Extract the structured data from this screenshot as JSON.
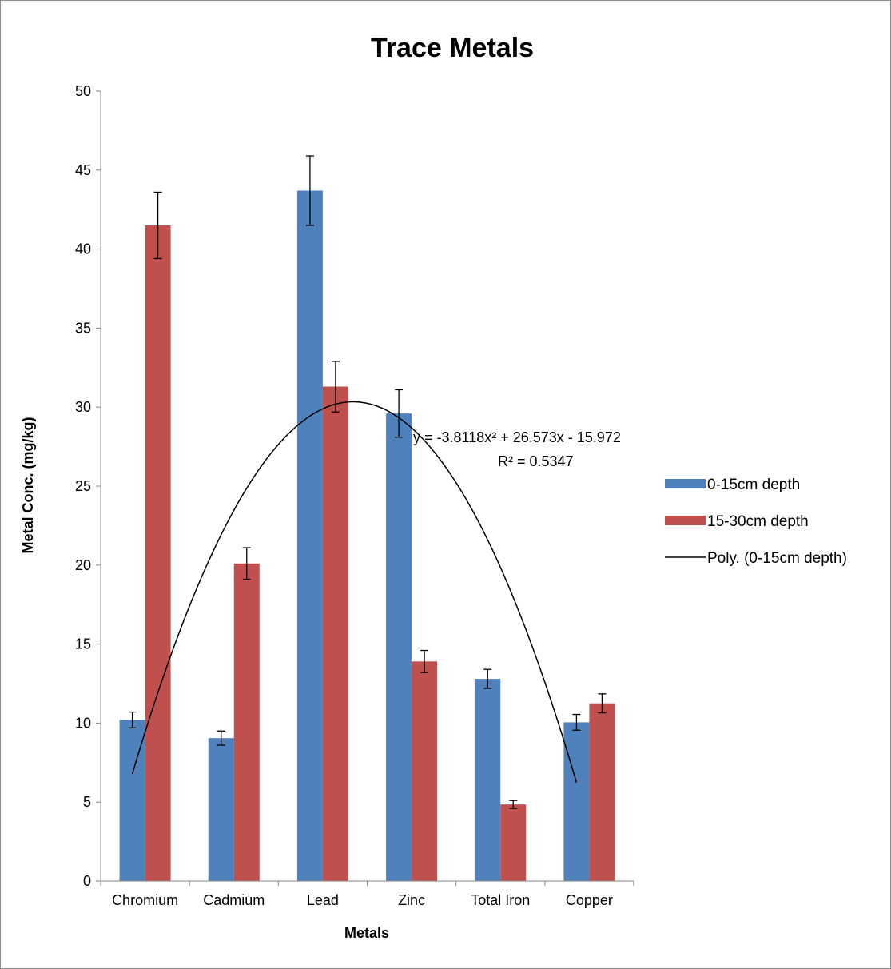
{
  "chart_data": {
    "type": "bar",
    "title": "Trace Metals",
    "xlabel": "Metals",
    "ylabel": "Metal Conc. (mg/kg)",
    "ylim": [
      0,
      50
    ],
    "yticks": [
      0,
      5,
      10,
      15,
      20,
      25,
      30,
      35,
      40,
      45,
      50
    ],
    "categories": [
      "Chromium",
      "Cadmium",
      "Lead",
      "Zinc",
      "Total Iron",
      "Copper"
    ],
    "series": [
      {
        "name": "0-15cm depth",
        "color": "#4f81bd",
        "values": [
          10.2,
          9.05,
          43.7,
          29.6,
          12.8,
          10.05
        ],
        "errors": [
          0.5,
          0.45,
          2.2,
          1.5,
          0.6,
          0.5
        ]
      },
      {
        "name": "15-30cm depth",
        "color": "#c0504d",
        "values": [
          41.5,
          20.1,
          31.3,
          13.9,
          4.85,
          11.25
        ],
        "errors": [
          2.1,
          1.0,
          1.6,
          0.7,
          0.25,
          0.6
        ]
      }
    ],
    "trendline": {
      "name": "Poly. (0-15cm depth)",
      "of_series": "0-15cm depth",
      "order": 2,
      "coefficients": [
        -3.8118,
        26.573,
        -15.972
      ],
      "equation": "y = -3.8118x² + 26.573x - 15.972",
      "r_squared": "R² = 0.5347",
      "color": "#000000"
    },
    "legend": "right",
    "grid": false
  }
}
